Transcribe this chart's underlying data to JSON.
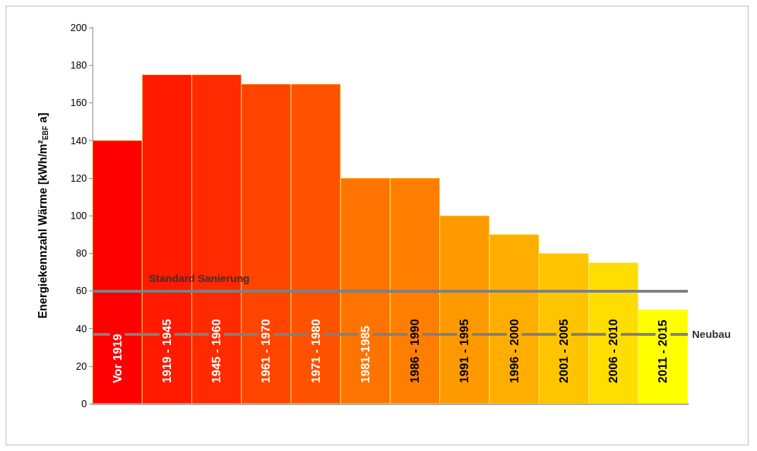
{
  "chart_data": {
    "type": "bar",
    "ylabel": "Energiekennzahl Wärme [kWh/m²$_{EBF}$ a]",
    "categories": [
      "Vor 1919",
      "1919 - 1945",
      "1945 - 1960",
      "1961 - 1970",
      "1971 - 1980",
      "1981-1985",
      "1986 - 1990",
      "1991 - 1995",
      "1996 - 2000",
      "2001 - 2005",
      "2006 - 2010",
      "2011 - 2015"
    ],
    "values": [
      140,
      175,
      175,
      170,
      170,
      120,
      120,
      100,
      90,
      80,
      75,
      50
    ],
    "colors": [
      "#ff0000",
      "#ff1a00",
      "#ff2a00",
      "#ff4400",
      "#ff5200",
      "#ff7400",
      "#ff7e00",
      "#ff9900",
      "#ffae00",
      "#ffc400",
      "#ffdd00",
      "#ffff00"
    ],
    "ylim": [
      0,
      200
    ],
    "yticks": [
      0,
      20,
      40,
      60,
      80,
      100,
      120,
      140,
      160,
      180,
      200
    ],
    "grid": false,
    "ref_lines": [
      {
        "axis": "y",
        "value": 60,
        "label": "Standard Sanierung",
        "color": "#808080"
      },
      {
        "axis": "y",
        "value": 37,
        "label": "Neubau",
        "color": "#808080"
      }
    ]
  }
}
